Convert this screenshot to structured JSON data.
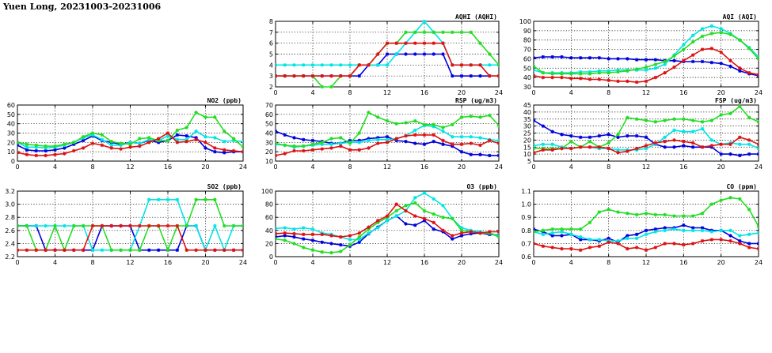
{
  "page_title": "Yuen Long, 20231003-20231006",
  "series_colors": [
    "#0000dd",
    "#00e5e5",
    "#22dd22",
    "#dd1111"
  ],
  "chart_data": [
    {
      "id": "aqhi",
      "type": "line",
      "title": "AQHI (AQHI)",
      "xlim": [
        0,
        24
      ],
      "ylim": [
        2,
        8
      ],
      "x_ticks": [
        0,
        4,
        8,
        12,
        16,
        20,
        24
      ],
      "y_ticks": [
        2,
        3,
        4,
        5,
        6,
        7,
        8
      ],
      "grid": true,
      "series": [
        {
          "color": "#0000dd",
          "values": [
            3,
            3,
            3,
            3,
            3,
            3,
            3,
            3,
            3,
            3,
            4,
            4,
            5,
            5,
            5,
            5,
            5,
            5,
            5,
            3,
            3,
            3,
            3,
            3,
            3
          ]
        },
        {
          "color": "#00e5e5",
          "values": [
            4,
            4,
            4,
            4,
            4,
            4,
            4,
            4,
            4,
            4,
            4,
            4,
            4,
            5,
            6,
            7,
            8,
            7,
            6,
            4,
            4,
            4,
            4,
            4,
            4
          ]
        },
        {
          "color": "#22dd22",
          "values": [
            3,
            3,
            3,
            3,
            3,
            2,
            2,
            3,
            3,
            4,
            4,
            5,
            6,
            6,
            7,
            7,
            7,
            7,
            7,
            7,
            7,
            7,
            6,
            5,
            4
          ]
        },
        {
          "color": "#dd1111",
          "values": [
            3,
            3,
            3,
            3,
            3,
            3,
            3,
            3,
            3,
            4,
            4,
            5,
            6,
            6,
            6,
            6,
            6,
            6,
            6,
            4,
            4,
            4,
            4,
            3,
            3
          ]
        }
      ]
    },
    {
      "id": "aqi",
      "type": "line",
      "title": "AQI (AQI)",
      "xlim": [
        0,
        24
      ],
      "ylim": [
        30,
        100
      ],
      "x_ticks": [
        0,
        4,
        8,
        12,
        16,
        20,
        24
      ],
      "y_ticks": [
        30,
        40,
        50,
        60,
        70,
        80,
        90,
        100
      ],
      "grid": true,
      "series": [
        {
          "color": "#0000dd",
          "values": [
            61,
            62,
            62,
            62,
            61,
            61,
            61,
            61,
            60,
            60,
            60,
            59,
            59,
            59,
            58,
            58,
            57,
            57,
            57,
            56,
            55,
            52,
            47,
            44,
            42
          ]
        },
        {
          "color": "#00e5e5",
          "values": [
            48,
            45,
            45,
            45,
            45,
            46,
            46,
            47,
            47,
            48,
            48,
            48,
            48,
            50,
            54,
            64,
            75,
            85,
            92,
            95,
            92,
            87,
            80,
            72,
            62
          ]
        },
        {
          "color": "#22dd22",
          "values": [
            52,
            45,
            44,
            44,
            44,
            44,
            44,
            45,
            45,
            46,
            47,
            49,
            51,
            54,
            57,
            63,
            70,
            78,
            84,
            87,
            88,
            86,
            80,
            71,
            60
          ]
        },
        {
          "color": "#dd1111",
          "values": [
            42,
            40,
            40,
            40,
            39,
            39,
            38,
            38,
            37,
            36,
            36,
            35,
            36,
            40,
            45,
            51,
            58,
            64,
            70,
            71,
            67,
            58,
            50,
            45,
            43
          ]
        }
      ]
    },
    {
      "id": "no2",
      "type": "line",
      "title": "NO2 (ppb)",
      "xlim": [
        0,
        24
      ],
      "ylim": [
        0,
        60
      ],
      "x_ticks": [
        0,
        4,
        8,
        12,
        16,
        20,
        24
      ],
      "y_ticks": [
        0,
        10,
        20,
        30,
        40,
        50,
        60
      ],
      "grid": true,
      "series": [
        {
          "color": "#0000dd",
          "values": [
            17,
            12,
            11,
            11,
            12,
            14,
            18,
            22,
            27,
            22,
            20,
            18,
            20,
            19,
            22,
            20,
            22,
            28,
            27,
            25,
            14,
            10,
            9,
            10,
            10
          ]
        },
        {
          "color": "#00e5e5",
          "values": [
            20,
            15,
            15,
            14,
            15,
            17,
            20,
            25,
            28,
            23,
            17,
            17,
            20,
            19,
            23,
            22,
            27,
            23,
            23,
            32,
            26,
            25,
            21,
            22,
            21
          ]
        },
        {
          "color": "#22dd22",
          "values": [
            20,
            18,
            17,
            16,
            16,
            18,
            20,
            26,
            30,
            28,
            21,
            19,
            18,
            24,
            25,
            22,
            22,
            33,
            36,
            52,
            47,
            47,
            32,
            24,
            15
          ]
        },
        {
          "color": "#dd1111",
          "values": [
            9,
            7,
            6,
            6,
            7,
            8,
            11,
            14,
            19,
            17,
            14,
            13,
            15,
            16,
            20,
            24,
            30,
            20,
            21,
            23,
            20,
            14,
            12,
            11,
            10
          ]
        }
      ]
    },
    {
      "id": "rsp",
      "type": "line",
      "title": "RSP (ug/m3)",
      "xlim": [
        0,
        24
      ],
      "ylim": [
        10,
        70
      ],
      "x_ticks": [
        0,
        4,
        8,
        12,
        16,
        20,
        24
      ],
      "y_ticks": [
        10,
        20,
        30,
        40,
        50,
        60,
        70
      ],
      "grid": true,
      "series": [
        {
          "color": "#0000dd",
          "values": [
            42,
            38,
            35,
            33,
            32,
            31,
            29,
            29,
            32,
            32,
            34,
            35,
            36,
            32,
            31,
            29,
            28,
            31,
            28,
            26,
            20,
            17,
            17,
            16,
            16
          ]
        },
        {
          "color": "#00e5e5",
          "values": [
            28,
            27,
            25,
            26,
            27,
            28,
            28,
            29,
            30,
            30,
            32,
            33,
            33,
            34,
            37,
            43,
            48,
            47,
            42,
            36,
            36,
            36,
            35,
            33,
            32
          ]
        },
        {
          "color": "#22dd22",
          "values": [
            29,
            27,
            26,
            26,
            28,
            30,
            34,
            35,
            29,
            40,
            62,
            57,
            53,
            50,
            51,
            53,
            49,
            49,
            46,
            49,
            57,
            58,
            57,
            59,
            48
          ]
        },
        {
          "color": "#dd1111",
          "values": [
            16,
            18,
            21,
            21,
            22,
            23,
            24,
            26,
            22,
            22,
            24,
            29,
            30,
            34,
            37,
            38,
            38,
            38,
            32,
            28,
            28,
            29,
            27,
            32,
            29
          ]
        }
      ]
    },
    {
      "id": "fsp",
      "type": "line",
      "title": "FSP (ug/m3)",
      "xlim": [
        0,
        24
      ],
      "ylim": [
        5,
        45
      ],
      "x_ticks": [
        0,
        4,
        8,
        12,
        16,
        20,
        24
      ],
      "y_ticks": [
        5,
        10,
        15,
        20,
        25,
        30,
        35,
        40,
        45
      ],
      "grid": true,
      "series": [
        {
          "color": "#0000dd",
          "values": [
            34,
            30,
            26,
            24,
            23,
            22,
            22,
            23,
            24,
            22,
            23,
            23,
            22,
            17,
            15,
            15,
            16,
            15,
            15,
            15,
            10,
            10,
            9,
            10,
            10
          ]
        },
        {
          "color": "#00e5e5",
          "values": [
            16,
            17,
            17,
            15,
            14,
            15,
            15,
            14,
            14,
            13,
            13,
            13,
            14,
            17,
            22,
            27,
            26,
            26,
            28,
            20,
            17,
            18,
            17,
            17,
            14
          ]
        },
        {
          "color": "#22dd22",
          "values": [
            14,
            14,
            14,
            14,
            19,
            15,
            19,
            15,
            18,
            24,
            36,
            35,
            34,
            33,
            34,
            35,
            35,
            34,
            33,
            34,
            38,
            39,
            44,
            36,
            33
          ]
        },
        {
          "color": "#dd1111",
          "values": [
            11,
            13,
            13,
            14,
            14,
            15,
            15,
            15,
            14,
            11,
            12,
            14,
            16,
            18,
            19,
            20,
            19,
            18,
            15,
            16,
            17,
            17,
            22,
            20,
            17
          ]
        }
      ]
    },
    {
      "id": "so2",
      "type": "line",
      "title": "SO2 (ppb)",
      "xlim": [
        0,
        24
      ],
      "ylim": [
        2.2,
        3.2
      ],
      "x_ticks": [
        0,
        4,
        8,
        12,
        16,
        20,
        24
      ],
      "y_ticks": [
        2.2,
        2.4,
        2.6,
        2.8,
        3.0,
        3.2
      ],
      "grid": true,
      "series": [
        {
          "color": "#0000dd",
          "values": [
            2.67,
            2.67,
            2.67,
            2.3,
            2.3,
            2.3,
            2.3,
            2.3,
            2.3,
            2.67,
            2.67,
            2.67,
            2.67,
            2.3,
            2.3,
            2.3,
            2.3,
            2.3,
            2.67,
            2.67,
            2.3,
            2.3,
            2.3,
            2.3,
            2.3
          ]
        },
        {
          "color": "#00e5e5",
          "values": [
            2.67,
            2.67,
            2.67,
            2.67,
            2.67,
            2.67,
            2.67,
            2.67,
            2.3,
            2.3,
            2.3,
            2.3,
            2.3,
            2.67,
            3.07,
            3.07,
            3.07,
            3.07,
            2.67,
            2.67,
            2.3,
            2.67,
            2.3,
            2.67,
            2.67
          ]
        },
        {
          "color": "#22dd22",
          "values": [
            2.67,
            2.67,
            2.3,
            2.3,
            2.67,
            2.3,
            2.67,
            2.67,
            2.67,
            2.67,
            2.3,
            2.3,
            2.3,
            2.3,
            2.67,
            2.67,
            2.3,
            2.67,
            2.67,
            3.07,
            3.07,
            3.07,
            2.67,
            2.67,
            2.67
          ]
        },
        {
          "color": "#dd1111",
          "values": [
            2.3,
            2.3,
            2.3,
            2.3,
            2.3,
            2.3,
            2.3,
            2.3,
            2.67,
            2.67,
            2.67,
            2.67,
            2.67,
            2.67,
            2.67,
            2.67,
            2.67,
            2.67,
            2.3,
            2.3,
            2.3,
            2.3,
            2.3,
            2.3,
            2.3
          ]
        }
      ]
    },
    {
      "id": "o3",
      "type": "line",
      "title": "O3 (ppb)",
      "xlim": [
        0,
        24
      ],
      "ylim": [
        0,
        100
      ],
      "x_ticks": [
        0,
        4,
        8,
        12,
        16,
        20,
        24
      ],
      "y_ticks": [
        0,
        20,
        40,
        60,
        80,
        100
      ],
      "grid": true,
      "series": [
        {
          "color": "#0000dd",
          "values": [
            30,
            32,
            30,
            27,
            25,
            22,
            20,
            18,
            16,
            22,
            35,
            45,
            55,
            62,
            50,
            48,
            55,
            42,
            38,
            27,
            32,
            35,
            36,
            34,
            33
          ]
        },
        {
          "color": "#00e5e5",
          "values": [
            43,
            44,
            42,
            44,
            42,
            36,
            34,
            30,
            26,
            26,
            36,
            44,
            55,
            62,
            70,
            90,
            97,
            88,
            78,
            58,
            44,
            40,
            38,
            36,
            32
          ]
        },
        {
          "color": "#22dd22",
          "values": [
            27,
            25,
            20,
            14,
            10,
            7,
            6,
            8,
            18,
            30,
            42,
            52,
            60,
            70,
            78,
            82,
            70,
            65,
            60,
            58,
            40,
            38,
            36,
            36,
            30
          ]
        },
        {
          "color": "#dd1111",
          "values": [
            35,
            36,
            35,
            34,
            34,
            34,
            32,
            30,
            32,
            36,
            45,
            55,
            62,
            80,
            70,
            62,
            58,
            52,
            40,
            32,
            36,
            38,
            36,
            38,
            38
          ]
        }
      ]
    },
    {
      "id": "co",
      "type": "line",
      "title": "CO (ppm)",
      "xlim": [
        0,
        24
      ],
      "ylim": [
        0.6,
        1.1
      ],
      "x_ticks": [
        0,
        4,
        8,
        12,
        16,
        20,
        24
      ],
      "y_ticks": [
        0.6,
        0.7,
        0.8,
        0.9,
        1.0,
        1.1
      ],
      "grid": true,
      "series": [
        {
          "color": "#0000dd",
          "values": [
            0.81,
            0.79,
            0.76,
            0.76,
            0.77,
            0.73,
            0.73,
            0.72,
            0.74,
            0.71,
            0.76,
            0.77,
            0.8,
            0.81,
            0.82,
            0.82,
            0.84,
            0.82,
            0.82,
            0.8,
            0.8,
            0.76,
            0.72,
            0.7,
            0.7
          ]
        },
        {
          "color": "#00e5e5",
          "values": [
            0.79,
            0.77,
            0.78,
            0.79,
            0.77,
            0.75,
            0.73,
            0.73,
            0.72,
            0.72,
            0.74,
            0.74,
            0.77,
            0.79,
            0.8,
            0.81,
            0.8,
            0.8,
            0.8,
            0.79,
            0.8,
            0.8,
            0.76,
            0.77,
            0.78
          ]
        },
        {
          "color": "#22dd22",
          "values": [
            0.79,
            0.8,
            0.81,
            0.81,
            0.81,
            0.81,
            0.86,
            0.94,
            0.96,
            0.94,
            0.93,
            0.92,
            0.93,
            0.92,
            0.92,
            0.91,
            0.91,
            0.91,
            0.93,
            1.0,
            1.03,
            1.05,
            1.04,
            0.96,
            0.83
          ]
        },
        {
          "color": "#dd1111",
          "values": [
            0.7,
            0.68,
            0.67,
            0.66,
            0.66,
            0.65,
            0.67,
            0.68,
            0.71,
            0.7,
            0.66,
            0.67,
            0.65,
            0.67,
            0.7,
            0.7,
            0.69,
            0.7,
            0.72,
            0.73,
            0.73,
            0.72,
            0.7,
            0.67,
            0.66
          ]
        }
      ]
    }
  ]
}
